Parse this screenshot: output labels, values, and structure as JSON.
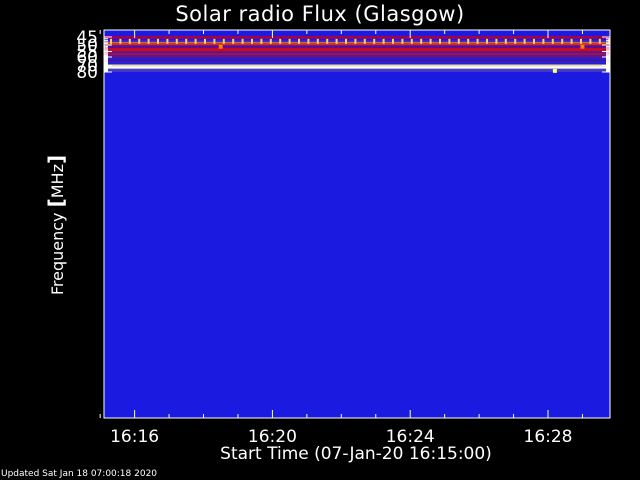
{
  "chart_data": {
    "type": "heatmap",
    "title": "Solar radio Flux (Glasgow)",
    "ylabel": "Frequency",
    "ylabel_unit": "MHz",
    "xlabel": "Start Time (07-Jan-20 16:15:00)",
    "y_tick_labels": [
      "45",
      "50",
      "55",
      "60",
      "70",
      "80"
    ],
    "y_ticks": [
      45,
      50,
      55,
      60,
      70,
      80
    ],
    "ylim": [
      45,
      80
    ],
    "y_scale": "reciprocal",
    "x_tick_labels": [
      "16:16",
      "16:20",
      "16:24",
      "16:28"
    ],
    "x_ticks_min": [
      1,
      5,
      9,
      13
    ],
    "xlim_min": [
      0,
      14.75
    ],
    "background_color": "#1a1ae0",
    "bands": [
      {
        "freq": 45.2,
        "color": "#b00040",
        "intensity": "medium"
      },
      {
        "freq": 47.6,
        "color": "#3b30c8",
        "intensity": "low"
      },
      {
        "freq": 48.6,
        "color": "#7a30a0",
        "intensity": "low"
      },
      {
        "freq": 49.9,
        "color": "#ffb000",
        "intensity": "high"
      },
      {
        "freq": 50.3,
        "color": "#e02020",
        "intensity": "high"
      },
      {
        "freq": 51.0,
        "color": "#6a1090",
        "intensity": "medium"
      },
      {
        "freq": 52.0,
        "color": "#5010a0",
        "intensity": "medium"
      },
      {
        "freq": 54.3,
        "color": "#ff0000",
        "intensity": "high"
      },
      {
        "freq": 55.1,
        "color": "#c01020",
        "intensity": "high"
      },
      {
        "freq": 56.0,
        "color": "#4018b0",
        "intensity": "medium"
      },
      {
        "freq": 57.5,
        "color": "#5a20a0",
        "intensity": "medium"
      },
      {
        "freq": 58.5,
        "color": "#b01030",
        "intensity": "high"
      },
      {
        "freq": 59.5,
        "color": "#4a18a8",
        "intensity": "medium"
      },
      {
        "freq": 62.5,
        "color": "#3020c0",
        "intensity": "low"
      },
      {
        "freq": 64.3,
        "color": "#5010a0",
        "intensity": "medium"
      },
      {
        "freq": 66.0,
        "color": "#2828d0",
        "intensity": "low"
      },
      {
        "freq": 72.7,
        "color": "#fff0a0",
        "intensity": "max"
      },
      {
        "freq": 76.0,
        "color": "#3030c8",
        "intensity": "low"
      },
      {
        "freq": 78.2,
        "color": "#4a3ac0",
        "intensity": "low"
      }
    ],
    "spots": [
      {
        "t_min": 3.5,
        "freq": 51.2,
        "color": "#ff8000"
      },
      {
        "t_min": 14.0,
        "freq": 51.2,
        "color": "#ff8000"
      },
      {
        "t_min": 13.2,
        "freq": 78.0,
        "color": "#ffff80"
      }
    ],
    "colors": {
      "bar_teeth": "#ffd060"
    }
  },
  "footer": {
    "updated": "Updated Sat Jan 18 07:00:18 2020"
  }
}
